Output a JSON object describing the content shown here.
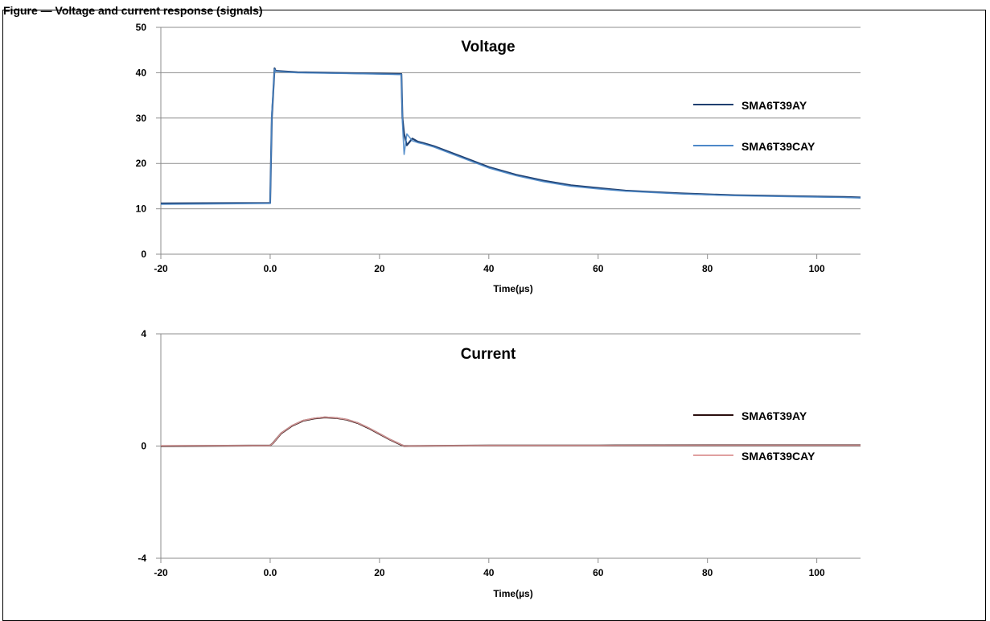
{
  "caption": "Figure — Voltage and current response (signals)",
  "colors": {
    "grid": "#8c8c8c",
    "axis": "#8c8c8c",
    "text": "#000000"
  },
  "chart_data": [
    {
      "type": "line",
      "title": "Voltage",
      "xlabel": "Time(µs)",
      "ylabel": "",
      "xlim": [
        -20,
        108
      ],
      "ylim": [
        0,
        50
      ],
      "x_ticks": [
        -20,
        0,
        20,
        40,
        60,
        80,
        100
      ],
      "x_tick_labels": [
        "-20",
        "0.0",
        "20",
        "40",
        "60",
        "80",
        "100"
      ],
      "y_ticks": [
        0,
        10,
        20,
        30,
        40,
        50
      ],
      "y_tick_labels": [
        "0",
        "10",
        "20",
        "30",
        "40",
        "50"
      ],
      "grid": "horizontal",
      "legend_position": "right",
      "series": [
        {
          "name": "SMA6T39AY",
          "color": "#1f3f6f",
          "x": [
            -20,
            0,
            0.3,
            0.8,
            1,
            5,
            10,
            15,
            20,
            24,
            24.2,
            24.5,
            25,
            26,
            27,
            28,
            30,
            35,
            40,
            45,
            50,
            55,
            60,
            65,
            70,
            75,
            80,
            85,
            90,
            95,
            100,
            105,
            108
          ],
          "y": [
            11.2,
            11.3,
            30,
            41,
            40.4,
            40.1,
            40,
            39.9,
            39.8,
            39.7,
            30,
            26.5,
            24,
            25.5,
            24.8,
            24.5,
            23.8,
            21.5,
            19.2,
            17.5,
            16.2,
            15.2,
            14.6,
            14,
            13.7,
            13.4,
            13.2,
            13,
            12.9,
            12.8,
            12.7,
            12.6,
            12.5
          ]
        },
        {
          "name": "SMA6T39CAY",
          "color": "#4d88c8",
          "x": [
            -20,
            0,
            0.3,
            0.8,
            1,
            5,
            10,
            15,
            20,
            24,
            24.2,
            24.5,
            25,
            26,
            27,
            28,
            30,
            35,
            40,
            45,
            50,
            55,
            60,
            65,
            70,
            75,
            80,
            85,
            90,
            95,
            100,
            105,
            108
          ],
          "y": [
            11,
            11.2,
            31,
            40.8,
            40.3,
            40,
            39.9,
            39.8,
            39.7,
            39.6,
            29,
            22,
            26.5,
            25,
            24.6,
            24.3,
            23.6,
            21.3,
            19,
            17.3,
            16,
            15,
            14.4,
            13.9,
            13.6,
            13.3,
            13.1,
            12.9,
            12.8,
            12.7,
            12.6,
            12.5,
            12.4
          ]
        }
      ]
    },
    {
      "type": "line",
      "title": "Current",
      "xlabel": "Time(µs)",
      "ylabel": "",
      "xlim": [
        -20,
        108
      ],
      "ylim": [
        -4,
        4
      ],
      "x_ticks": [
        -20,
        0,
        20,
        40,
        60,
        80,
        100
      ],
      "x_tick_labels": [
        "-20",
        "0.0",
        "20",
        "40",
        "60",
        "80",
        "100"
      ],
      "y_ticks": [
        -4,
        0,
        4
      ],
      "y_tick_labels": [
        "-4",
        "0",
        "4"
      ],
      "grid": "horizontal",
      "legend_position": "right",
      "series": [
        {
          "name": "SMA6T39AY",
          "color": "#2a0f0f",
          "x": [
            -20,
            0,
            0.5,
            2,
            4,
            6,
            8,
            10,
            12,
            14,
            16,
            18,
            20,
            22,
            24,
            24.5,
            30,
            40,
            60,
            80,
            100,
            108
          ],
          "y": [
            0,
            0.02,
            0.1,
            0.45,
            0.72,
            0.9,
            0.98,
            1.02,
            1.0,
            0.94,
            0.82,
            0.64,
            0.43,
            0.22,
            0.04,
            0,
            0.01,
            0.02,
            0.02,
            0.03,
            0.03,
            0.03
          ]
        },
        {
          "name": "SMA6T39CAY",
          "color": "#e0a0a0",
          "x": [
            -20,
            0,
            0.5,
            2,
            4,
            6,
            8,
            10,
            12,
            14,
            16,
            18,
            20,
            22,
            24,
            24.5,
            30,
            40,
            60,
            80,
            100,
            108
          ],
          "y": [
            0.01,
            0.02,
            0.1,
            0.46,
            0.73,
            0.91,
            0.99,
            1.03,
            1.01,
            0.95,
            0.83,
            0.65,
            0.44,
            0.23,
            0.05,
            0,
            0.01,
            0.02,
            0.02,
            0.03,
            0.03,
            0.03
          ]
        }
      ]
    }
  ]
}
